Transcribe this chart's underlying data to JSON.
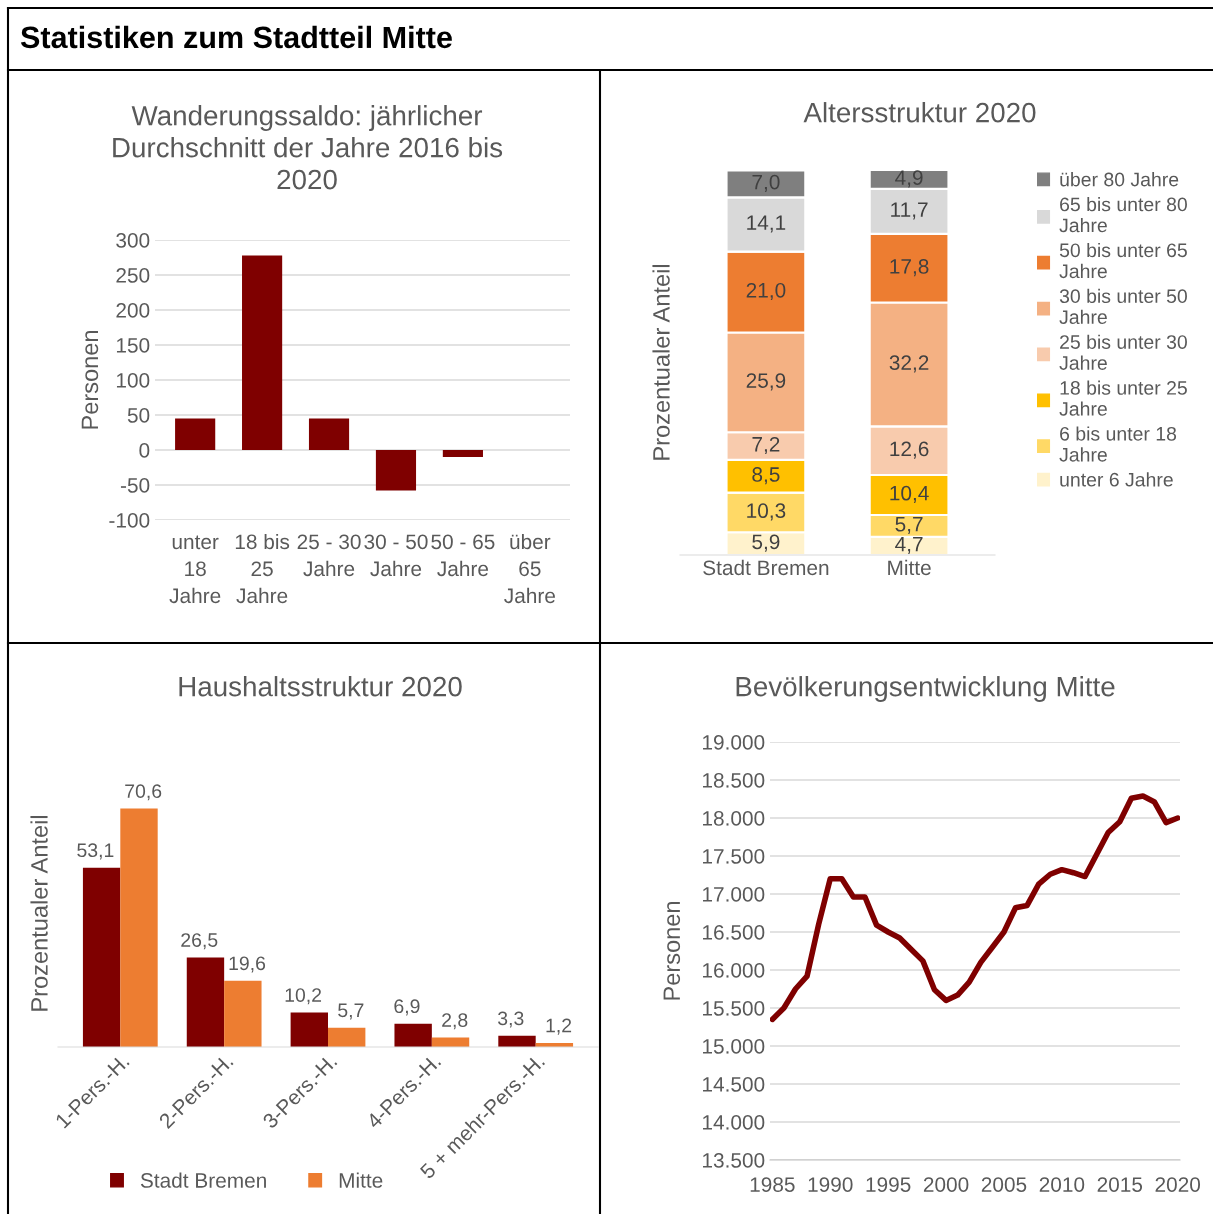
{
  "chart_data": [
    {
      "type": "other",
      "title": "Statistiken zum Stadtteil Mitte"
    },
    {
      "type": "bar",
      "title": "Wanderungssaldo: jährlicher\nDurchschnitt der Jahre 2016 bis\n2020",
      "ylabel": "Personen",
      "categories": [
        "unter\n18\nJahre",
        "18 bis\n25\nJahre",
        "25 - 30\nJahre",
        "30 - 50\nJahre",
        "50 - 65\nJahre",
        "über\n65\nJahre"
      ],
      "values": [
        45,
        278,
        45,
        -58,
        -10,
        null
      ],
      "color": "#7f0000",
      "ylim": [
        -100,
        300
      ],
      "yticks": [
        -100,
        -50,
        0,
        50,
        100,
        150,
        200,
        250,
        300
      ],
      "grid": "y"
    },
    {
      "type": "bar",
      "title": "Altersstruktur 2020",
      "ylabel": "Prozentualer Anteil",
      "stacked": true,
      "categories": [
        "Stadt Bremen",
        "Mitte"
      ],
      "legend": "right",
      "series": [
        {
          "name": "unter 6 Jahre",
          "color": "#fff2cc",
          "values": [
            5.9,
            4.7
          ],
          "value_labels": [
            "5,9",
            "4,7"
          ]
        },
        {
          "name": "6 bis unter 18 Jahre",
          "color": "#ffd966",
          "values": [
            10.3,
            5.7
          ],
          "value_labels": [
            "10,3",
            "5,7"
          ]
        },
        {
          "name": "18 bis unter 25 Jahre",
          "color": "#ffc000",
          "values": [
            8.5,
            10.4
          ],
          "value_labels": [
            "8,5",
            "10,4"
          ]
        },
        {
          "name": "25 bis unter 30 Jahre",
          "color": "#f8cbad",
          "values": [
            7.2,
            12.6
          ],
          "value_labels": [
            "7,2",
            "12,6"
          ]
        },
        {
          "name": "30 bis unter 50 Jahre",
          "color": "#f4b183",
          "values": [
            25.9,
            32.2
          ],
          "value_labels": [
            "25,9",
            "32,2"
          ]
        },
        {
          "name": "50 bis unter 65 Jahre",
          "color": "#ed7d31",
          "values": [
            21.0,
            17.8
          ],
          "value_labels": [
            "21,0",
            "17,8"
          ]
        },
        {
          "name": "65 bis unter 80 Jahre",
          "color": "#d9d9d9",
          "values": [
            14.1,
            11.7
          ],
          "value_labels": [
            "14,1",
            "11,7"
          ]
        },
        {
          "name": "über 80 Jahre",
          "color": "#7f7f7f",
          "values": [
            7.0,
            4.9
          ],
          "value_labels": [
            "7,0",
            "4,9"
          ]
        }
      ]
    },
    {
      "type": "bar",
      "title": "Haushaltsstruktur 2020",
      "ylabel": "Prozentualer Anteil",
      "legend": "bottom",
      "categories": [
        "1-Pers.-H.",
        "2-Pers.-H.",
        "3-Pers.-H.",
        "4-Pers.-H.",
        "5 + mehr-Pers.-H."
      ],
      "series": [
        {
          "name": "Stadt Bremen",
          "color": "#7f0000",
          "values": [
            53.1,
            26.5,
            10.2,
            6.9,
            3.3
          ],
          "value_labels": [
            "53,1",
            "26,5",
            "10,2",
            "6,9",
            "3,3"
          ]
        },
        {
          "name": "Mitte",
          "color": "#ed7d31",
          "values": [
            70.6,
            19.6,
            5.7,
            2.8,
            1.2
          ],
          "value_labels": [
            "70,6",
            "19,6",
            "5,7",
            "2,8",
            "1,2"
          ]
        }
      ]
    },
    {
      "type": "line",
      "title": "Bevölkerungsentwicklung Mitte",
      "ylabel": "Personen",
      "color": "#7f0000",
      "grid": "y",
      "x": [
        1985,
        1986,
        1987,
        1988,
        1989,
        1990,
        1991,
        1992,
        1993,
        1994,
        1995,
        1996,
        1997,
        1998,
        1999,
        2000,
        2001,
        2002,
        2003,
        2004,
        2005,
        2006,
        2007,
        2008,
        2009,
        2010,
        2011,
        2012,
        2013,
        2014,
        2015,
        2016,
        2017,
        2018,
        2019,
        2020
      ],
      "values": [
        15350,
        15500,
        15750,
        15920,
        16600,
        17200,
        17200,
        16960,
        16960,
        16590,
        16500,
        16420,
        16270,
        16120,
        15740,
        15600,
        15670,
        15840,
        16100,
        16300,
        16500,
        16820,
        16850,
        17130,
        17260,
        17320,
        17280,
        17230,
        17520,
        17810,
        17950,
        18260,
        18290,
        18210,
        17940,
        18000
      ],
      "xlim": [
        1984.8,
        2020.2
      ],
      "xticks": [
        1985,
        1990,
        1995,
        2000,
        2005,
        2010,
        2015,
        2020
      ],
      "ylim": [
        13500,
        19000
      ],
      "yticks": [
        {
          "value": 13500,
          "label": "13.500"
        },
        {
          "value": 14000,
          "label": "14.000"
        },
        {
          "value": 14500,
          "label": "14.500"
        },
        {
          "value": 15000,
          "label": "15.000"
        },
        {
          "value": 15500,
          "label": "15.500"
        },
        {
          "value": 16000,
          "label": "16.000"
        },
        {
          "value": 16500,
          "label": "16.500"
        },
        {
          "value": 17000,
          "label": "17.000"
        },
        {
          "value": 17500,
          "label": "17.500"
        },
        {
          "value": 18000,
          "label": "18.000"
        },
        {
          "value": 18500,
          "label": "18.500"
        },
        {
          "value": 19000,
          "label": "19.000"
        }
      ]
    }
  ]
}
